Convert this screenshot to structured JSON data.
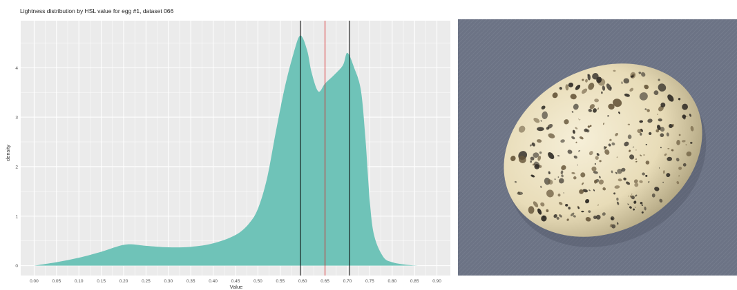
{
  "chart_data": {
    "type": "area",
    "title": "Lightness distribution by HSL value for egg #1, dataset 066",
    "xlabel": "Value",
    "ylabel": "density",
    "xlim": [
      -0.03,
      0.93
    ],
    "ylim": [
      -0.2,
      4.95
    ],
    "xticks": [
      "0.00",
      "0.05",
      "0.10",
      "0.15",
      "0.20",
      "0.25",
      "0.30",
      "0.35",
      "0.40",
      "0.45",
      "0.50",
      "0.55",
      "0.60",
      "0.65",
      "0.70",
      "0.75",
      "0.80",
      "0.85",
      "0.90"
    ],
    "yticks": [
      "0",
      "1",
      "2",
      "3",
      "4"
    ],
    "grid": true,
    "fill_color": "#6fc3b8",
    "panel_color": "#ebebeb",
    "x": [
      0.0,
      0.05,
      0.1,
      0.15,
      0.18,
      0.2,
      0.22,
      0.25,
      0.3,
      0.35,
      0.4,
      0.45,
      0.48,
      0.5,
      0.52,
      0.54,
      0.56,
      0.58,
      0.595,
      0.61,
      0.62,
      0.635,
      0.65,
      0.67,
      0.69,
      0.7,
      0.715,
      0.73,
      0.74,
      0.75,
      0.76,
      0.78,
      0.8,
      0.83,
      0.86
    ],
    "y": [
      0.0,
      0.07,
      0.16,
      0.28,
      0.37,
      0.42,
      0.43,
      0.4,
      0.37,
      0.38,
      0.45,
      0.62,
      0.85,
      1.15,
      1.75,
      2.7,
      3.6,
      4.3,
      4.65,
      4.35,
      3.9,
      3.52,
      3.68,
      3.85,
      4.05,
      4.3,
      4.0,
      3.55,
      2.6,
      1.3,
      0.6,
      0.18,
      0.07,
      0.02,
      0.0
    ],
    "vlines": [
      {
        "x": 0.595,
        "color": "#000000"
      },
      {
        "x": 0.65,
        "color": "#d62728"
      },
      {
        "x": 0.705,
        "color": "#000000"
      }
    ]
  },
  "photo": {
    "background_color": "#6c7385",
    "egg_base_color": "#e8dcb8",
    "egg_edge_color": "#a89c78",
    "spot_dark_color": "#2e2a24",
    "spot_brown_color": "#6a5a3e"
  }
}
